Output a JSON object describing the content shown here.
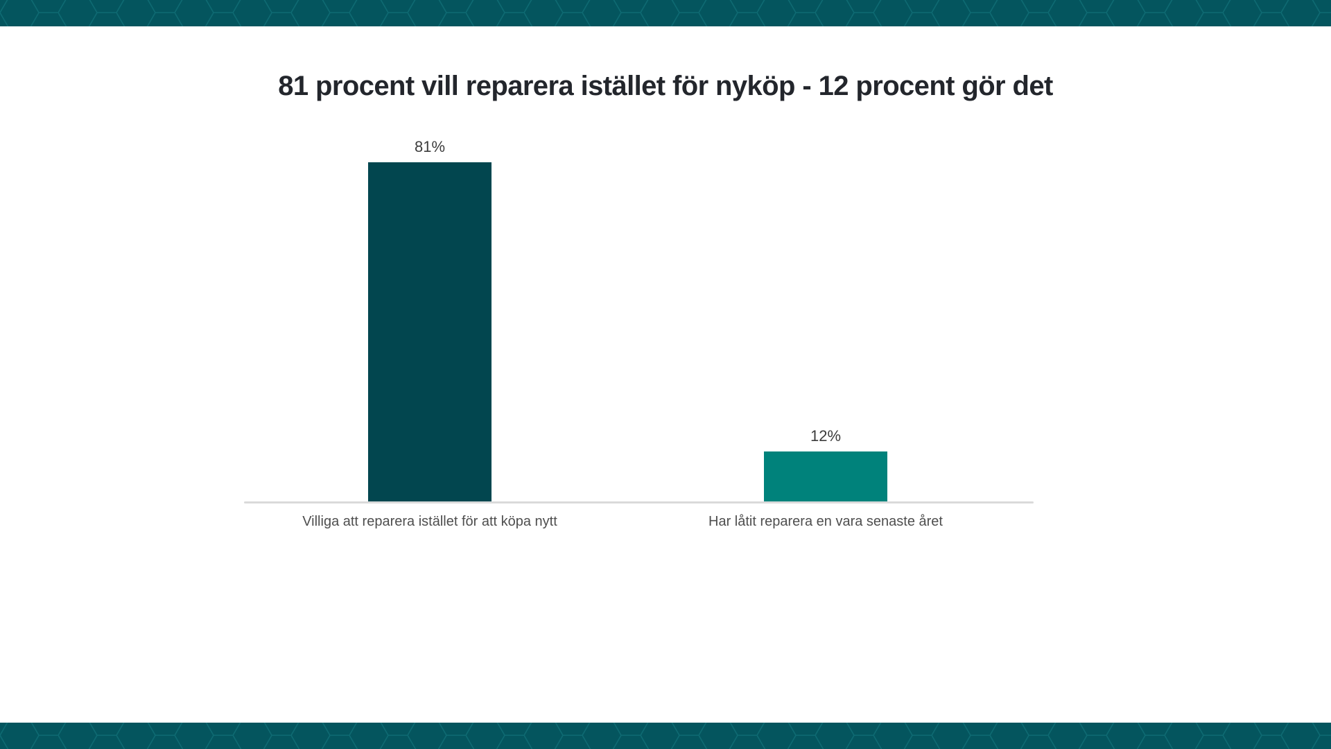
{
  "title": "81 procent vill reparera istället för nyköp - 12 procent gör det",
  "theme": {
    "banner_color": "#04555e",
    "banner_line_color": "#0e6a72",
    "axis_line_color": "#dadada",
    "title_color": "#23262c",
    "value_label_color": "#3c3c3c",
    "category_label_color": "#4e4e4e"
  },
  "chart_data": {
    "type": "bar",
    "title": "81 procent vill reparera istället för nyköp - 12 procent gör det",
    "categories": [
      "Villiga att reparera istället för att köpa nytt",
      "Har låtit reparera en vara senaste året"
    ],
    "values": [
      81,
      12
    ],
    "value_labels": [
      "81%",
      "12%"
    ],
    "bar_colors": [
      "#02464f",
      "#00827b"
    ],
    "xlabel": "",
    "ylabel": "",
    "ylim": [
      0,
      85
    ],
    "grid": false,
    "legend": false,
    "value_label_position": "above-bar",
    "baseline": "light-gray horizontal line under bars"
  }
}
